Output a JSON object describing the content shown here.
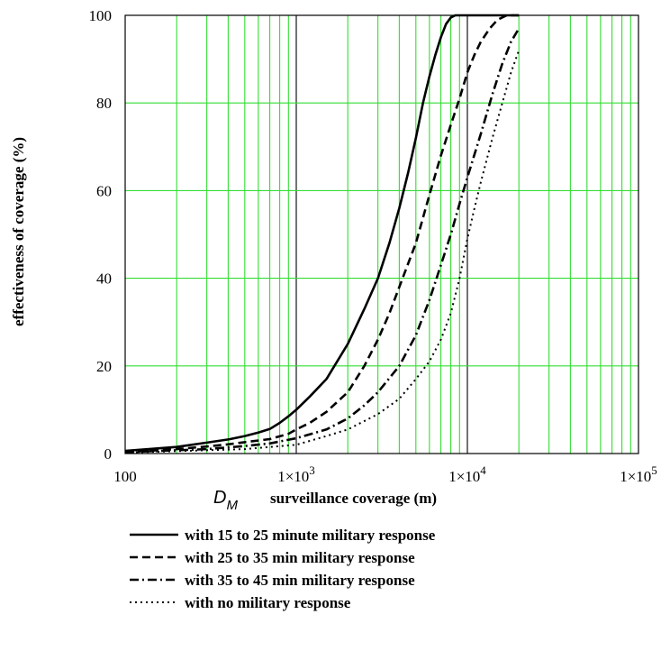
{
  "chart_data": {
    "type": "line",
    "x_scale": "log",
    "xlim": [
      100,
      100000
    ],
    "ylim": [
      0,
      100
    ],
    "grid": true,
    "colors": {
      "grid": "#33dd33",
      "decade_line": "#000000",
      "series": "#000000"
    },
    "xlabel_symbol": "D",
    "xlabel_subscript": "M",
    "xlabel": "surveillance coverage (m)",
    "ylabel": "effectiveness of coverage (%)",
    "x_tick_labels": [
      {
        "value": 100,
        "label": "100"
      },
      {
        "value": 1000,
        "label": "1×10",
        "exp": "3"
      },
      {
        "value": 10000,
        "label": "1×10",
        "exp": "4"
      },
      {
        "value": 100000,
        "label": "1×10",
        "exp": "5"
      }
    ],
    "y_ticks": [
      0,
      20,
      40,
      60,
      80,
      100
    ],
    "legend_position": "below-plot",
    "series": [
      {
        "name": "with 15 to 25 minute military response",
        "style": "solid",
        "points": [
          [
            100,
            0.6
          ],
          [
            200,
            1.5
          ],
          [
            300,
            2.5
          ],
          [
            400,
            3.2
          ],
          [
            500,
            4
          ],
          [
            600,
            4.8
          ],
          [
            700,
            5.6
          ],
          [
            800,
            7
          ],
          [
            900,
            8.5
          ],
          [
            1000,
            10
          ],
          [
            1200,
            13
          ],
          [
            1500,
            17
          ],
          [
            2000,
            25
          ],
          [
            2500,
            33
          ],
          [
            3000,
            40
          ],
          [
            3500,
            48
          ],
          [
            4000,
            56
          ],
          [
            4500,
            64
          ],
          [
            5000,
            72
          ],
          [
            5500,
            80
          ],
          [
            6000,
            86
          ],
          [
            6500,
            91
          ],
          [
            7000,
            95
          ],
          [
            7500,
            98
          ],
          [
            8000,
            99.5
          ],
          [
            8500,
            100
          ],
          [
            20000,
            100
          ]
        ]
      },
      {
        "name": "with 25 to 35 min military response",
        "style": "dashed",
        "points": [
          [
            100,
            0.3
          ],
          [
            200,
            1
          ],
          [
            300,
            1.6
          ],
          [
            400,
            2.1
          ],
          [
            500,
            2.6
          ],
          [
            700,
            3.3
          ],
          [
            900,
            4.5
          ],
          [
            1000,
            5.5
          ],
          [
            1200,
            7
          ],
          [
            1500,
            9.5
          ],
          [
            2000,
            14
          ],
          [
            2500,
            20
          ],
          [
            3000,
            26
          ],
          [
            3500,
            32
          ],
          [
            4000,
            38
          ],
          [
            5000,
            48
          ],
          [
            6000,
            59
          ],
          [
            7000,
            68
          ],
          [
            8000,
            75
          ],
          [
            9000,
            81
          ],
          [
            10000,
            87
          ],
          [
            11000,
            91
          ],
          [
            12000,
            94
          ],
          [
            13500,
            97
          ],
          [
            15000,
            99
          ],
          [
            17000,
            100
          ],
          [
            20000,
            100
          ]
        ]
      },
      {
        "name": "with 35 to 45 min military response",
        "style": "dashdot",
        "points": [
          [
            100,
            0.3
          ],
          [
            300,
            1
          ],
          [
            500,
            1.7
          ],
          [
            700,
            2.3
          ],
          [
            1000,
            3.5
          ],
          [
            1500,
            5.5
          ],
          [
            2000,
            8
          ],
          [
            2500,
            11
          ],
          [
            3000,
            14
          ],
          [
            4000,
            20
          ],
          [
            5000,
            27
          ],
          [
            6000,
            35
          ],
          [
            7000,
            43
          ],
          [
            8000,
            50
          ],
          [
            9000,
            57
          ],
          [
            10000,
            63
          ],
          [
            12000,
            73
          ],
          [
            14000,
            82
          ],
          [
            16000,
            89
          ],
          [
            18000,
            94
          ],
          [
            20000,
            97
          ]
        ]
      },
      {
        "name": "with no military response",
        "style": "dotted",
        "points": [
          [
            100,
            0.2
          ],
          [
            500,
            1
          ],
          [
            1000,
            2
          ],
          [
            1500,
            4
          ],
          [
            2000,
            5.5
          ],
          [
            3000,
            9
          ],
          [
            4000,
            12.5
          ],
          [
            5000,
            17
          ],
          [
            6000,
            21
          ],
          [
            7000,
            26
          ],
          [
            8000,
            32
          ],
          [
            9000,
            40
          ],
          [
            10000,
            49
          ],
          [
            11000,
            56
          ],
          [
            12000,
            62
          ],
          [
            14000,
            72
          ],
          [
            16000,
            80
          ],
          [
            18000,
            87
          ],
          [
            20000,
            92
          ]
        ]
      }
    ]
  }
}
